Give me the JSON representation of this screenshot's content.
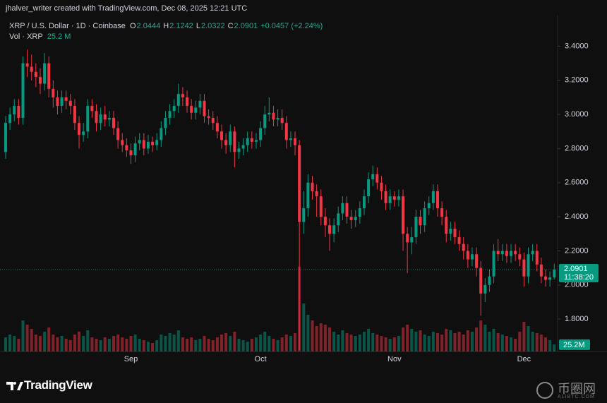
{
  "chart_data": {
    "type": "candlestick",
    "attribution": "jhalver_writer created with TradingView.com, Dec 08, 2025 12:21 UTC",
    "symbol": "XRP / U.S. Dollar · 1D · Coinbase",
    "ohlc_keys": [
      "O",
      "H",
      "L",
      "C"
    ],
    "change": "+0.0457 (+2.24%)",
    "vol_title": "Vol · XRP",
    "vol_legend": "25.2 M",
    "vol_tag": "25.2M",
    "countdown": "11:38:20",
    "brand": "TradingView",
    "watermark": [
      "币圈网",
      "ALIBTC.COM"
    ],
    "up_color": "#089981",
    "down_color": "#f23645",
    "grid": false,
    "ylim": [
      1.61,
      3.58
    ],
    "yticks": [
      {
        "value": 3.4,
        "label": "3.4000"
      },
      {
        "value": 3.2,
        "label": "3.2000"
      },
      {
        "value": 3.0,
        "label": "3.0000"
      },
      {
        "value": 2.8,
        "label": "2.8000"
      },
      {
        "value": 2.6,
        "label": "2.6000"
      },
      {
        "value": 2.4,
        "label": "2.4000"
      },
      {
        "value": 2.2,
        "label": "2.2000"
      },
      {
        "value": 2.0,
        "label": "2.0000"
      },
      {
        "value": 1.8,
        "label": "1.8000"
      }
    ],
    "categories": [
      null,
      null,
      null,
      null,
      null,
      null,
      null,
      null,
      null,
      null,
      null,
      null,
      null,
      null,
      null,
      null,
      null,
      null,
      null,
      null,
      null,
      null,
      null,
      null,
      null,
      null,
      null,
      null,
      null,
      "Sep",
      null,
      null,
      null,
      null,
      null,
      null,
      null,
      null,
      null,
      null,
      null,
      null,
      null,
      null,
      null,
      null,
      null,
      null,
      null,
      null,
      null,
      null,
      null,
      null,
      null,
      null,
      null,
      null,
      null,
      "Oct",
      null,
      null,
      null,
      null,
      null,
      null,
      null,
      null,
      null,
      null,
      null,
      null,
      null,
      null,
      null,
      null,
      null,
      null,
      null,
      null,
      null,
      null,
      null,
      null,
      null,
      null,
      null,
      null,
      null,
      null,
      "Nov",
      null,
      null,
      null,
      null,
      null,
      null,
      null,
      null,
      null,
      null,
      null,
      null,
      null,
      null,
      null,
      null,
      null,
      null,
      null,
      null,
      null,
      null,
      null,
      null,
      null,
      null,
      null,
      null,
      null,
      "Dec",
      null,
      null,
      null,
      null,
      null,
      null,
      null
    ],
    "open": [
      2.78,
      2.95,
      3.0,
      3.05,
      2.98,
      3.3,
      3.28,
      3.25,
      3.22,
      3.18,
      3.3,
      3.15,
      3.1,
      3.05,
      3.1,
      3.08,
      3.05,
      2.95,
      2.88,
      2.9,
      3.05,
      3.02,
      2.95,
      3.0,
      2.97,
      2.98,
      2.92,
      2.85,
      2.82,
      2.79,
      2.76,
      2.83,
      2.85,
      2.8,
      2.84,
      2.82,
      2.85,
      2.92,
      2.98,
      3.02,
      3.05,
      3.12,
      3.1,
      3.05,
      3.01,
      3.04,
      3.08,
      2.99,
      2.98,
      2.95,
      2.9,
      2.85,
      2.82,
      2.9,
      2.78,
      2.8,
      2.82,
      2.86,
      2.84,
      2.85,
      2.92,
      3.0,
      3.01,
      2.97,
      2.98,
      2.95,
      2.85,
      2.86,
      2.82,
      2.37,
      2.45,
      2.6,
      2.55,
      2.52,
      2.4,
      2.35,
      2.3,
      2.35,
      2.42,
      2.48,
      2.4,
      2.38,
      2.4,
      2.45,
      2.52,
      2.62,
      2.65,
      2.6,
      2.55,
      2.48,
      2.52,
      2.5,
      2.52,
      2.3,
      2.25,
      2.28,
      2.4,
      2.35,
      2.45,
      2.48,
      2.55,
      2.45,
      2.4,
      2.3,
      2.33,
      2.28,
      2.24,
      2.2,
      2.15,
      2.18,
      2.1,
      1.95,
      2.0,
      2.05,
      2.2,
      2.18,
      2.2,
      2.17,
      2.2,
      2.18,
      2.15,
      2.05,
      2.18,
      2.2,
      2.12,
      2.05,
      2.03,
      2.0444
    ],
    "high": [
      2.99,
      3.04,
      3.09,
      3.09,
      3.34,
      3.38,
      3.35,
      3.3,
      3.27,
      3.36,
      3.34,
      3.2,
      3.14,
      3.14,
      3.14,
      3.12,
      3.09,
      2.99,
      2.95,
      3.09,
      3.09,
      3.06,
      3.04,
      3.05,
      3.02,
      3.02,
      2.96,
      2.89,
      2.86,
      2.83,
      2.87,
      2.89,
      2.89,
      2.88,
      2.87,
      2.89,
      2.96,
      3.02,
      3.06,
      3.09,
      3.18,
      3.16,
      3.14,
      3.09,
      3.08,
      3.12,
      3.12,
      3.03,
      3.02,
      2.99,
      2.94,
      2.89,
      2.94,
      2.93,
      2.84,
      2.86,
      2.9,
      2.9,
      2.89,
      2.96,
      3.05,
      3.1,
      3.05,
      3.03,
      3.03,
      2.99,
      2.9,
      2.9,
      2.85,
      2.55,
      2.65,
      2.64,
      2.59,
      2.56,
      2.45,
      2.39,
      2.39,
      2.46,
      2.52,
      2.52,
      2.44,
      2.44,
      2.49,
      2.56,
      2.66,
      2.7,
      2.69,
      2.64,
      2.59,
      2.56,
      2.55,
      2.56,
      2.56,
      2.34,
      2.34,
      2.44,
      2.44,
      2.49,
      2.52,
      2.59,
      2.59,
      2.49,
      2.44,
      2.37,
      2.37,
      2.32,
      2.28,
      2.24,
      2.22,
      2.22,
      2.14,
      2.04,
      2.09,
      2.24,
      2.27,
      2.24,
      2.24,
      2.24,
      2.24,
      2.22,
      2.19,
      2.22,
      2.24,
      2.24,
      2.16,
      2.09,
      2.08,
      2.1242
    ],
    "low": [
      2.74,
      2.91,
      2.96,
      2.94,
      2.94,
      3.22,
      3.2,
      3.16,
      3.12,
      3.14,
      3.1,
      3.04,
      3.0,
      3.01,
      3.03,
      3.0,
      2.91,
      2.8,
      2.84,
      2.86,
      2.98,
      2.9,
      2.91,
      2.93,
      2.93,
      2.88,
      2.8,
      2.78,
      2.75,
      2.71,
      2.72,
      2.79,
      2.76,
      2.77,
      2.78,
      2.79,
      2.81,
      2.88,
      2.94,
      2.98,
      3.01,
      3.05,
      3.01,
      2.97,
      2.97,
      3.0,
      2.95,
      2.94,
      2.91,
      2.86,
      2.8,
      2.77,
      2.78,
      2.69,
      2.74,
      2.76,
      2.78,
      2.8,
      2.8,
      2.81,
      2.88,
      2.96,
      2.93,
      2.93,
      2.91,
      2.8,
      2.81,
      2.76,
      1.62,
      2.3,
      2.4,
      2.5,
      2.4,
      2.35,
      2.28,
      2.2,
      2.25,
      2.31,
      2.38,
      2.36,
      2.33,
      2.34,
      2.36,
      2.41,
      2.48,
      2.58,
      2.56,
      2.5,
      2.44,
      2.44,
      2.46,
      2.46,
      2.2,
      2.07,
      2.18,
      2.24,
      2.3,
      2.31,
      2.41,
      2.44,
      2.4,
      2.35,
      2.25,
      2.26,
      2.24,
      2.2,
      2.15,
      2.1,
      2.11,
      2.05,
      1.82,
      1.9,
      1.96,
      2.01,
      2.14,
      2.14,
      2.13,
      2.13,
      2.14,
      2.11,
      1.99,
      2.01,
      2.14,
      2.08,
      2.01,
      1.99,
      1.99,
      2.0322
    ],
    "close": [
      2.95,
      3.0,
      3.05,
      2.98,
      3.3,
      3.28,
      3.25,
      3.22,
      3.18,
      3.3,
      3.15,
      3.1,
      3.05,
      3.1,
      3.08,
      3.05,
      2.95,
      2.88,
      2.9,
      3.05,
      3.02,
      2.95,
      3.0,
      2.97,
      2.98,
      2.92,
      2.85,
      2.82,
      2.79,
      2.76,
      2.83,
      2.85,
      2.8,
      2.84,
      2.82,
      2.85,
      2.92,
      2.98,
      3.02,
      3.05,
      3.12,
      3.1,
      3.05,
      3.01,
      3.04,
      3.08,
      2.99,
      2.98,
      2.95,
      2.9,
      2.85,
      2.82,
      2.9,
      2.78,
      2.8,
      2.82,
      2.86,
      2.84,
      2.85,
      2.92,
      3.0,
      3.01,
      2.97,
      2.98,
      2.95,
      2.85,
      2.86,
      2.82,
      2.37,
      2.45,
      2.6,
      2.55,
      2.52,
      2.4,
      2.35,
      2.3,
      2.35,
      2.42,
      2.48,
      2.4,
      2.38,
      2.4,
      2.45,
      2.52,
      2.62,
      2.65,
      2.6,
      2.55,
      2.48,
      2.52,
      2.5,
      2.52,
      2.3,
      2.25,
      2.28,
      2.4,
      2.35,
      2.45,
      2.48,
      2.55,
      2.45,
      2.4,
      2.3,
      2.33,
      2.28,
      2.24,
      2.2,
      2.15,
      2.18,
      2.1,
      1.95,
      2.0,
      2.05,
      2.2,
      2.18,
      2.2,
      2.17,
      2.2,
      2.18,
      2.15,
      2.05,
      2.18,
      2.2,
      2.12,
      2.05,
      2.03,
      2.0444,
      2.0901
    ],
    "volume": [
      50,
      60,
      55,
      45,
      110,
      95,
      80,
      60,
      55,
      70,
      85,
      60,
      50,
      55,
      45,
      40,
      60,
      70,
      55,
      75,
      50,
      45,
      40,
      50,
      45,
      55,
      60,
      50,
      45,
      55,
      60,
      45,
      40,
      35,
      30,
      40,
      60,
      55,
      65,
      60,
      75,
      50,
      45,
      50,
      40,
      45,
      55,
      45,
      40,
      50,
      60,
      65,
      55,
      70,
      45,
      40,
      35,
      45,
      50,
      60,
      70,
      55,
      45,
      40,
      50,
      60,
      55,
      65,
      300,
      170,
      130,
      110,
      90,
      100,
      95,
      85,
      70,
      60,
      75,
      65,
      60,
      55,
      60,
      70,
      80,
      65,
      60,
      55,
      50,
      45,
      50,
      55,
      85,
      95,
      80,
      70,
      75,
      60,
      55,
      70,
      65,
      60,
      80,
      75,
      65,
      70,
      60,
      75,
      70,
      85,
      110,
      95,
      70,
      80,
      65,
      60,
      55,
      50,
      45,
      70,
      105,
      90,
      70,
      65,
      60,
      50,
      40,
      25.2
    ]
  }
}
